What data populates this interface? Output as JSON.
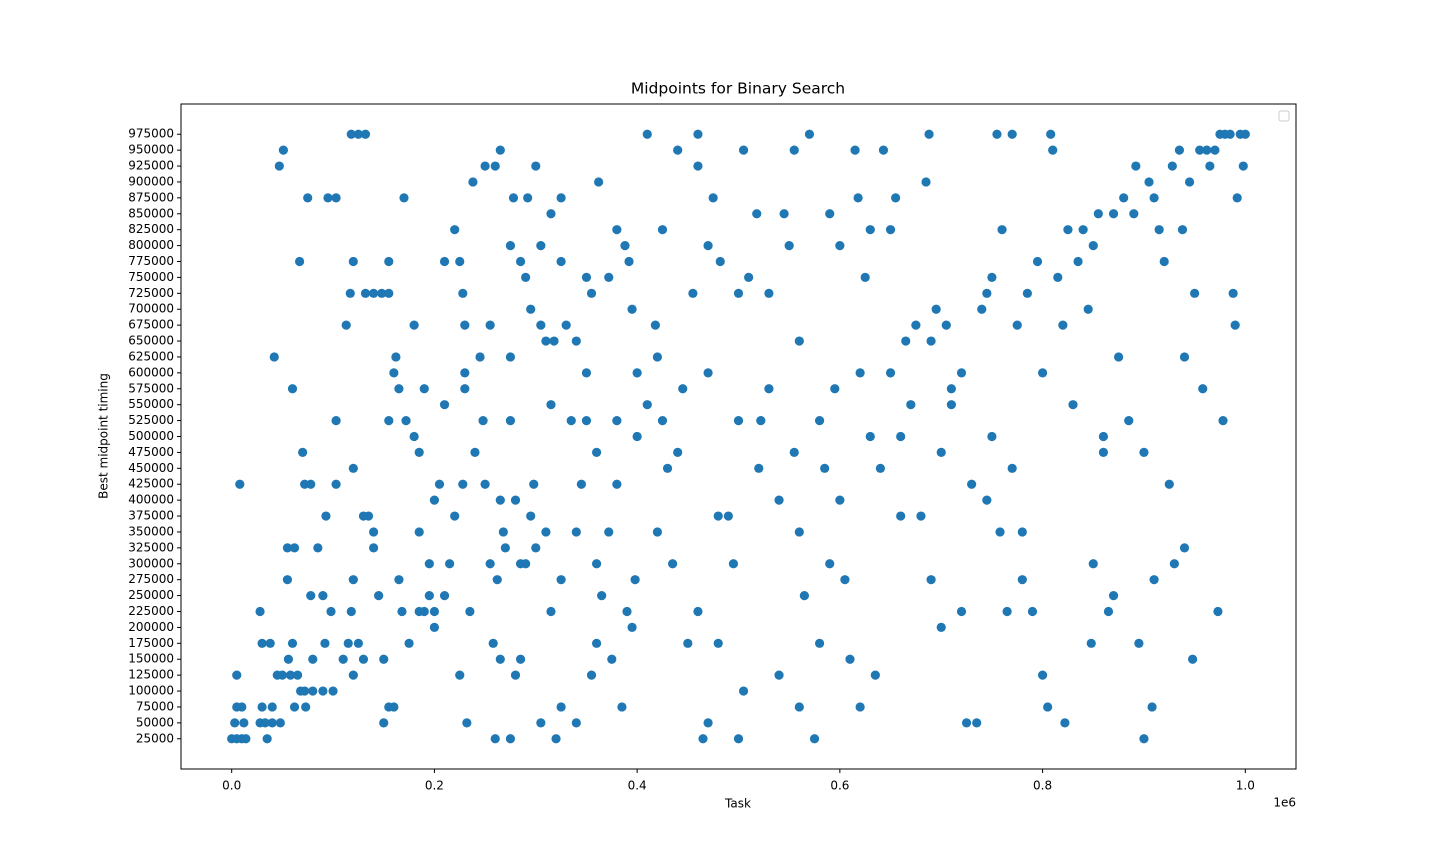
{
  "chart_data": {
    "type": "scatter",
    "title": "Midpoints for Binary Search",
    "x_label": "Task",
    "y_label": "Best midpoint timing",
    "x_offset_label": "1e6",
    "color": "#1f77b4",
    "legend": "upper right",
    "xlim": [
      -50000,
      1050000
    ],
    "ylim": [
      -22500,
      1022500
    ],
    "xticks": [
      {
        "value": 0,
        "label": "0.0"
      },
      {
        "value": 200000,
        "label": "0.2"
      },
      {
        "value": 400000,
        "label": "0.4"
      },
      {
        "value": 600000,
        "label": "0.6"
      },
      {
        "value": 800000,
        "label": "0.8"
      },
      {
        "value": 1000000,
        "label": "1.0"
      }
    ],
    "yticks": [
      25000,
      50000,
      75000,
      100000,
      125000,
      150000,
      175000,
      200000,
      225000,
      250000,
      275000,
      300000,
      325000,
      350000,
      375000,
      400000,
      425000,
      450000,
      475000,
      500000,
      525000,
      550000,
      575000,
      600000,
      625000,
      650000,
      675000,
      700000,
      725000,
      750000,
      775000,
      800000,
      825000,
      850000,
      875000,
      900000,
      925000,
      950000,
      975000
    ],
    "x": [
      0,
      5000,
      10000,
      14000,
      3000,
      12000,
      5000,
      10000,
      5000,
      8000,
      28000,
      33000,
      40000,
      48000,
      35000,
      30000,
      40000,
      45000,
      50000,
      58000,
      65000,
      30000,
      38000,
      56000,
      60000,
      68000,
      72000,
      80000,
      90000,
      100000,
      73000,
      62000,
      28000,
      47000,
      51000,
      60000,
      42000,
      67000,
      75000,
      95000,
      103000,
      55000,
      62000,
      55000,
      78000,
      85000,
      93000,
      72000,
      78000,
      70000,
      80000,
      92000,
      98000,
      90000,
      103000,
      103000,
      113000,
      117000,
      120000,
      118000,
      125000,
      132000,
      132000,
      140000,
      148000,
      155000,
      155000,
      170000,
      180000,
      120000,
      110000,
      115000,
      120000,
      125000,
      130000,
      118000,
      120000,
      130000,
      135000,
      140000,
      140000,
      145000,
      150000,
      155000,
      160000,
      162000,
      165000,
      172000,
      180000,
      185000,
      185000,
      190000,
      195000,
      200000,
      195000,
      200000,
      210000,
      215000,
      210000,
      220000,
      210000,
      225000,
      228000,
      230000,
      238000,
      250000,
      260000,
      150000,
      155000,
      160000,
      165000,
      175000,
      168000,
      185000,
      190000,
      200000,
      205000,
      220000,
      225000,
      228000,
      230000,
      235000,
      240000,
      248000,
      250000,
      255000,
      258000,
      262000,
      265000,
      268000,
      260000,
      275000,
      280000,
      285000,
      290000,
      295000,
      298000,
      232000,
      270000,
      275000,
      280000,
      285000,
      275000,
      278000,
      285000,
      290000,
      292000,
      295000,
      300000,
      305000,
      305000,
      310000,
      315000,
      315000,
      318000,
      325000,
      325000,
      330000,
      340000,
      350000,
      355000,
      362000,
      372000,
      380000,
      388000,
      392000,
      395000,
      265000,
      320000,
      305000,
      325000,
      340000,
      355000,
      360000,
      375000,
      385000,
      395000,
      300000,
      310000,
      315000,
      325000,
      335000,
      340000,
      350000,
      360000,
      365000,
      372000,
      380000,
      390000,
      398000,
      400000,
      410000,
      425000,
      418000,
      420000,
      425000,
      430000,
      435000,
      440000,
      450000,
      455000,
      460000,
      460000,
      465000,
      470000,
      475000,
      482000,
      490000,
      495000,
      500000,
      505000,
      505000,
      510000,
      518000,
      522000,
      530000,
      540000,
      545000,
      550000,
      555000,
      560000,
      565000,
      570000,
      575000,
      580000,
      585000,
      590000,
      595000,
      600000,
      605000,
      610000,
      615000,
      618000,
      620000,
      625000,
      630000,
      635000,
      640000,
      643000,
      650000,
      655000,
      660000,
      665000,
      670000,
      675000,
      680000,
      685000,
      688000,
      690000,
      695000,
      700000,
      705000,
      710000,
      720000,
      725000,
      730000,
      735000,
      740000,
      745000,
      750000,
      755000,
      758000,
      760000,
      765000,
      770000,
      775000,
      780000,
      785000,
      790000,
      795000,
      800000,
      805000,
      808000,
      810000,
      815000,
      820000,
      822000,
      825000,
      835000,
      840000,
      845000,
      848000,
      850000,
      855000,
      860000,
      865000,
      870000,
      875000,
      880000,
      885000,
      890000,
      892000,
      895000,
      900000,
      905000,
      908000,
      910000,
      915000,
      920000,
      925000,
      928000,
      930000,
      935000,
      938000,
      940000,
      945000,
      948000,
      950000,
      955000,
      958000,
      962000,
      965000,
      970000,
      973000,
      975000,
      978000,
      980000,
      985000,
      988000,
      990000,
      992000,
      995000,
      998000,
      1000000,
      700000,
      650000,
      620000,
      600000,
      580000,
      560000,
      540000,
      520000,
      500000,
      480000,
      460000,
      440000,
      420000,
      410000,
      445000,
      470000,
      530000,
      555000,
      590000,
      630000,
      660000,
      720000,
      750000,
      770000,
      800000,
      830000,
      860000,
      900000,
      910000,
      940000,
      870000,
      850000,
      780000,
      745000,
      710000,
      690000,
      380000,
      400000,
      360000,
      345000,
      230000,
      245000,
      255000,
      275000,
      265000,
      350000,
      560000,
      500000,
      470000,
      480000
    ],
    "values": [
      25000,
      25000,
      25000,
      25000,
      50000,
      50000,
      75000,
      75000,
      125000,
      425000,
      50000,
      50000,
      50000,
      50000,
      25000,
      75000,
      75000,
      125000,
      125000,
      125000,
      125000,
      175000,
      175000,
      150000,
      175000,
      100000,
      100000,
      100000,
      100000,
      100000,
      75000,
      75000,
      225000,
      925000,
      950000,
      575000,
      625000,
      775000,
      875000,
      875000,
      875000,
      325000,
      325000,
      275000,
      250000,
      325000,
      375000,
      425000,
      425000,
      475000,
      150000,
      175000,
      225000,
      250000,
      425000,
      525000,
      675000,
      725000,
      775000,
      975000,
      975000,
      975000,
      725000,
      725000,
      725000,
      725000,
      775000,
      875000,
      675000,
      450000,
      150000,
      175000,
      125000,
      175000,
      150000,
      225000,
      275000,
      375000,
      375000,
      325000,
      350000,
      250000,
      150000,
      525000,
      600000,
      625000,
      575000,
      525000,
      500000,
      475000,
      350000,
      225000,
      250000,
      200000,
      300000,
      225000,
      250000,
      300000,
      550000,
      825000,
      775000,
      775000,
      725000,
      675000,
      900000,
      925000,
      925000,
      50000,
      75000,
      75000,
      275000,
      175000,
      225000,
      225000,
      575000,
      400000,
      425000,
      375000,
      125000,
      425000,
      575000,
      225000,
      475000,
      525000,
      425000,
      300000,
      175000,
      275000,
      150000,
      350000,
      25000,
      25000,
      125000,
      150000,
      300000,
      375000,
      425000,
      50000,
      325000,
      525000,
      400000,
      300000,
      800000,
      875000,
      775000,
      750000,
      875000,
      700000,
      925000,
      800000,
      675000,
      650000,
      850000,
      550000,
      650000,
      875000,
      775000,
      675000,
      650000,
      750000,
      725000,
      900000,
      750000,
      825000,
      800000,
      775000,
      700000,
      950000,
      25000,
      50000,
      75000,
      50000,
      125000,
      175000,
      150000,
      75000,
      200000,
      325000,
      350000,
      225000,
      275000,
      525000,
      350000,
      525000,
      475000,
      250000,
      350000,
      425000,
      225000,
      275000,
      500000,
      975000,
      825000,
      675000,
      625000,
      525000,
      450000,
      300000,
      950000,
      175000,
      725000,
      925000,
      975000,
      25000,
      800000,
      875000,
      775000,
      375000,
      300000,
      725000,
      950000,
      100000,
      750000,
      850000,
      525000,
      725000,
      125000,
      850000,
      800000,
      950000,
      350000,
      250000,
      975000,
      25000,
      175000,
      450000,
      850000,
      575000,
      800000,
      275000,
      150000,
      950000,
      875000,
      75000,
      750000,
      825000,
      125000,
      450000,
      950000,
      825000,
      875000,
      500000,
      650000,
      550000,
      675000,
      375000,
      900000,
      975000,
      275000,
      700000,
      200000,
      675000,
      575000,
      225000,
      50000,
      425000,
      50000,
      700000,
      725000,
      750000,
      975000,
      350000,
      825000,
      225000,
      975000,
      675000,
      350000,
      725000,
      225000,
      775000,
      125000,
      75000,
      975000,
      950000,
      750000,
      675000,
      50000,
      825000,
      775000,
      825000,
      700000,
      175000,
      800000,
      850000,
      475000,
      225000,
      850000,
      625000,
      875000,
      525000,
      850000,
      925000,
      175000,
      25000,
      900000,
      75000,
      875000,
      825000,
      775000,
      425000,
      925000,
      300000,
      950000,
      825000,
      625000,
      900000,
      150000,
      725000,
      950000,
      575000,
      950000,
      925000,
      950000,
      225000,
      975000,
      525000,
      975000,
      975000,
      725000,
      675000,
      875000,
      975000,
      925000,
      975000,
      475000,
      600000,
      600000,
      400000,
      525000,
      650000,
      400000,
      450000,
      525000,
      375000,
      225000,
      475000,
      350000,
      550000,
      575000,
      600000,
      575000,
      475000,
      300000,
      500000,
      375000,
      600000,
      500000,
      450000,
      600000,
      550000,
      500000,
      475000,
      275000,
      325000,
      250000,
      300000,
      275000,
      400000,
      550000,
      650000,
      525000,
      600000,
      300000,
      425000,
      600000,
      625000,
      675000,
      625000,
      400000,
      600000,
      75000,
      25000,
      50000,
      175000
    ]
  }
}
